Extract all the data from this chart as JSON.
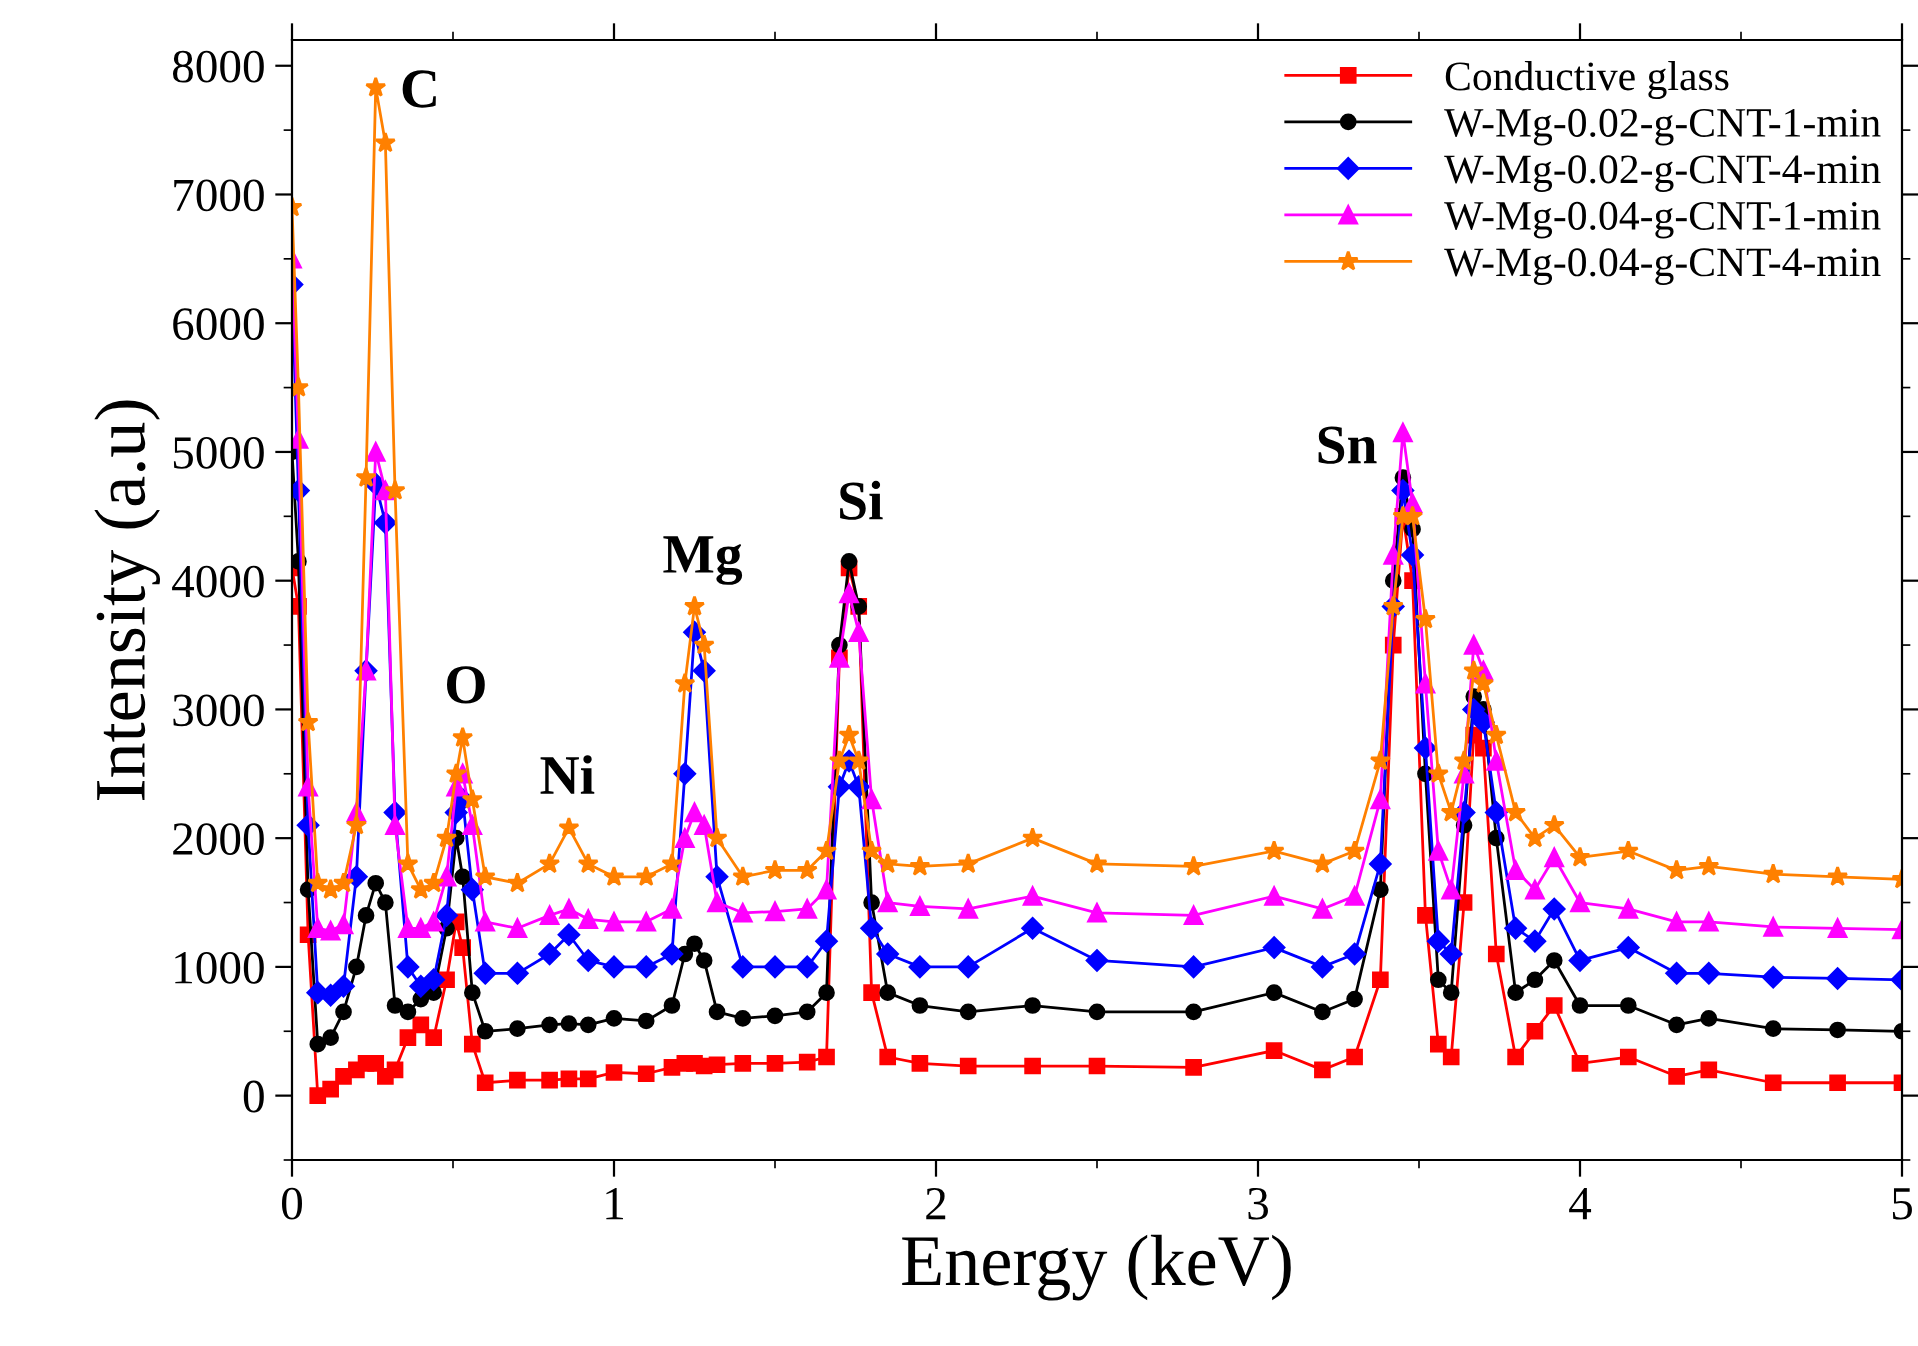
{
  "chart_data": {
    "type": "line",
    "xlabel": "Energy (keV)",
    "ylabel": "Intensity (a.u)",
    "x": [
      0,
      0.02,
      0.05,
      0.08,
      0.12,
      0.16,
      0.2,
      0.23,
      0.26,
      0.29,
      0.32,
      0.36,
      0.4,
      0.44,
      0.48,
      0.51,
      0.53,
      0.56,
      0.6,
      0.7,
      0.8,
      0.86,
      0.92,
      1.0,
      1.1,
      1.18,
      1.22,
      1.25,
      1.28,
      1.32,
      1.4,
      1.5,
      1.6,
      1.66,
      1.7,
      1.73,
      1.76,
      1.8,
      1.85,
      1.95,
      2.1,
      2.3,
      2.5,
      2.8,
      3.05,
      3.2,
      3.3,
      3.38,
      3.42,
      3.45,
      3.48,
      3.52,
      3.56,
      3.6,
      3.64,
      3.67,
      3.7,
      3.74,
      3.8,
      3.86,
      3.92,
      4.0,
      4.15,
      4.3,
      4.4,
      4.6,
      4.8,
      5.0
    ],
    "series": [
      {
        "name": "Conductive glass",
        "color": "#ff0000",
        "marker": "square",
        "values": [
          4100,
          3800,
          1250,
          0,
          50,
          150,
          200,
          250,
          250,
          150,
          200,
          450,
          550,
          450,
          900,
          1350,
          1150,
          400,
          100,
          120,
          120,
          130,
          130,
          180,
          170,
          220,
          250,
          250,
          230,
          240,
          250,
          250,
          260,
          300,
          3400,
          4100,
          3800,
          800,
          300,
          250,
          230,
          230,
          230,
          220,
          350,
          200,
          300,
          900,
          3500,
          4500,
          4000,
          1400,
          400,
          300,
          1500,
          2800,
          2700,
          1100,
          300,
          500,
          700,
          250,
          300,
          150,
          200,
          100,
          100,
          100
        ]
      },
      {
        "name": "W-Mg-0.02-g-CNT-1-min",
        "color": "#000000",
        "marker": "circle",
        "values": [
          5000,
          4150,
          1600,
          400,
          450,
          650,
          1000,
          1400,
          1650,
          1500,
          700,
          650,
          750,
          800,
          1300,
          2000,
          1700,
          800,
          500,
          520,
          550,
          560,
          550,
          600,
          580,
          700,
          1100,
          1180,
          1050,
          650,
          600,
          620,
          650,
          800,
          3500,
          4150,
          3800,
          1500,
          800,
          700,
          650,
          700,
          650,
          650,
          800,
          650,
          750,
          1600,
          4000,
          4800,
          4400,
          2500,
          900,
          800,
          2100,
          3100,
          3000,
          2000,
          800,
          900,
          1050,
          700,
          700,
          550,
          600,
          520,
          510,
          500
        ]
      },
      {
        "name": "W-Mg-0.02-g-CNT-4-min",
        "color": "#0000ff",
        "marker": "diamond",
        "values": [
          6300,
          4700,
          2100,
          800,
          780,
          850,
          1700,
          3300,
          4750,
          4450,
          2200,
          1000,
          850,
          900,
          1400,
          2200,
          2300,
          1600,
          950,
          950,
          1100,
          1250,
          1050,
          1000,
          1000,
          1100,
          2500,
          3600,
          3300,
          1700,
          1000,
          1000,
          1000,
          1200,
          2400,
          2600,
          2400,
          1300,
          1100,
          1000,
          1000,
          1300,
          1050,
          1000,
          1150,
          1000,
          1100,
          1800,
          3800,
          4700,
          4200,
          2700,
          1200,
          1100,
          2200,
          3000,
          2900,
          2200,
          1300,
          1200,
          1450,
          1050,
          1150,
          950,
          950,
          920,
          910,
          900
        ]
      },
      {
        "name": "W-Mg-0.04-g-CNT-1-min",
        "color": "#ff00ff",
        "marker": "triangle",
        "values": [
          6500,
          5100,
          2400,
          1300,
          1280,
          1330,
          2200,
          3300,
          5000,
          4700,
          2100,
          1300,
          1300,
          1350,
          1700,
          2400,
          2500,
          2100,
          1350,
          1300,
          1400,
          1450,
          1370,
          1350,
          1350,
          1450,
          2000,
          2200,
          2100,
          1500,
          1420,
          1430,
          1450,
          1600,
          3400,
          3900,
          3600,
          2300,
          1500,
          1470,
          1450,
          1550,
          1420,
          1400,
          1550,
          1450,
          1550,
          2300,
          4200,
          5150,
          4600,
          3200,
          1900,
          1600,
          2500,
          3500,
          3300,
          2600,
          1750,
          1600,
          1850,
          1500,
          1450,
          1350,
          1350,
          1310,
          1300,
          1290
        ]
      },
      {
        "name": "W-Mg-0.04-g-CNT-4-min",
        "color": "#ff8000",
        "marker": "star",
        "values": [
          6900,
          5500,
          2900,
          1650,
          1600,
          1650,
          2100,
          4800,
          7830,
          7400,
          4700,
          1800,
          1600,
          1650,
          2000,
          2500,
          2780,
          2300,
          1700,
          1650,
          1800,
          2080,
          1800,
          1700,
          1700,
          1800,
          3200,
          3800,
          3500,
          2000,
          1700,
          1750,
          1750,
          1900,
          2600,
          2800,
          2600,
          1900,
          1800,
          1780,
          1800,
          2000,
          1800,
          1780,
          1900,
          1800,
          1900,
          2600,
          3800,
          4500,
          4500,
          3700,
          2500,
          2200,
          2600,
          3300,
          3200,
          2800,
          2200,
          2000,
          2100,
          1850,
          1900,
          1750,
          1780,
          1720,
          1700,
          1680
        ]
      }
    ],
    "annotations": [
      "C",
      "O",
      "Ni",
      "Mg",
      "Si",
      "Sn"
    ],
    "xlim": [
      0,
      5
    ],
    "xticks": [
      0,
      1,
      2,
      3,
      4,
      5
    ],
    "ylim": [
      -500,
      8200
    ],
    "yticks": [
      0,
      1000,
      2000,
      3000,
      4000,
      5000,
      6000,
      7000,
      8000
    ],
    "grid": false,
    "legend": "top right",
    "line_style": "solid"
  }
}
